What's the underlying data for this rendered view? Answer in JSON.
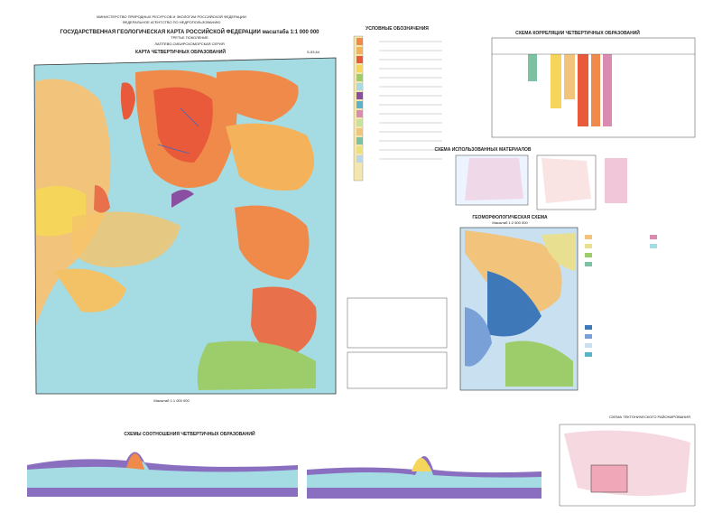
{
  "header": {
    "ministry": "МИНИСТЕРСТВО ПРИРОДНЫХ РЕСУРСОВ И ЭКОЛОГИИ РОССИЙСКОЙ ФЕДЕРАЦИИ",
    "agency": "ФЕДЕРАЛЬНОЕ АГЕНТСТВО ПО НЕДРОПОЛЬЗОВАНИЮ",
    "title": "ГОСУДАРСТВЕННАЯ ГЕОЛОГИЧЕСКАЯ КАРТА РОССИЙСКОЙ ФЕДЕРАЦИИ масштаба 1:1 000 000",
    "generation": "ТРЕТЬЕ ПОКОЛЕНИЕ",
    "series": "ЛАПТЕВО-СИБИРСКОМОРСКАЯ СЕРИЯ"
  },
  "map": {
    "title": "КАРТА ЧЕТВЕРТИЧНЫХ ОБРАЗОВАНИЙ",
    "sheet": "S-53,54",
    "scale": "Масштаб 1:1 000 000"
  },
  "legend": {
    "title": "УСЛОВНЫЕ ОБОЗНАЧЕНИЯ"
  },
  "correlation": {
    "title": "СХЕМА КОРРЕЛЯЦИИ ЧЕТВЕРТИЧНЫХ ОБРАЗОВАНИЙ"
  },
  "materials": {
    "title": "СХЕМА ИСПОЛЬЗОВАННЫХ МАТЕРИАЛОВ"
  },
  "geomorph": {
    "title": "ГЕОМОРФОЛОГИЧЕСКАЯ СХЕМА",
    "scale": "Масштаб 1:2 500 000"
  },
  "sections": {
    "title": "СХЕМЫ СООТНОШЕНИЯ ЧЕТВЕРТИЧНЫХ ОБРАЗОВАНИЙ"
  },
  "tectonic": {
    "title": "СХЕМА ТЕКТОНИЧЕСКОГО РАЙОНИРОВАНИЯ"
  }
}
